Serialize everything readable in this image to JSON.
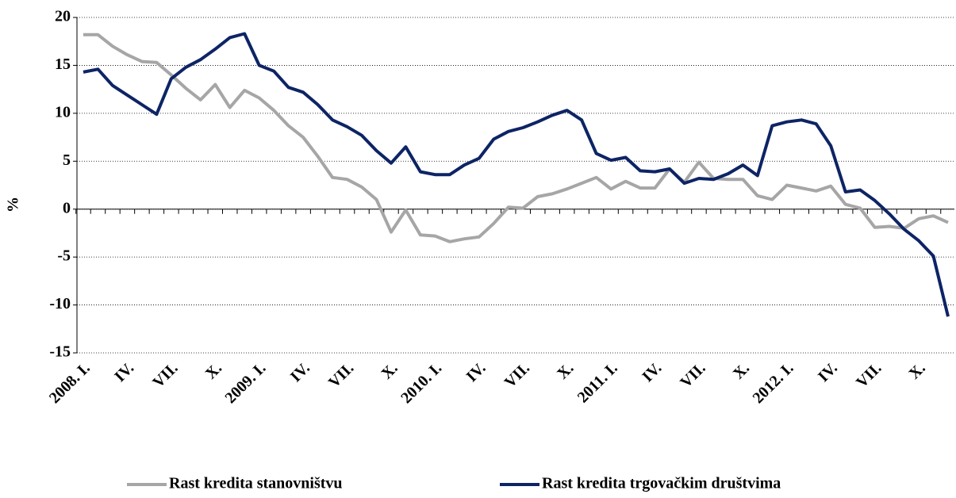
{
  "chart_data": {
    "type": "line",
    "y_label": "%",
    "categories": [
      "2008. I.",
      null,
      null,
      "IV.",
      null,
      null,
      "VII.",
      null,
      null,
      "X.",
      null,
      null,
      "2009. I.",
      null,
      null,
      "IV.",
      null,
      null,
      "VII.",
      null,
      null,
      "X.",
      null,
      null,
      "2010. I.",
      null,
      null,
      "IV.",
      null,
      null,
      "VII.",
      null,
      null,
      "X.",
      null,
      null,
      "2011. I.",
      null,
      null,
      "IV.",
      null,
      null,
      "VII.",
      null,
      null,
      "X.",
      null,
      null,
      "2012. I.",
      null,
      null,
      "IV.",
      null,
      null,
      "VII.",
      null,
      null,
      "X.",
      null,
      null
    ],
    "series": [
      {
        "name": "Rast kredita stanovništvu",
        "color": "#a6a6a6",
        "values": [
          18.2,
          18.2,
          17,
          16.1,
          15.4,
          15.3,
          14,
          12.6,
          11.4,
          13,
          10.6,
          12.4,
          11.6,
          10.3,
          8.7,
          7.5,
          5.5,
          3.3,
          3.1,
          2.3,
          1.0,
          -2.4,
          -0.1,
          -2.7,
          -2.8,
          -3.4,
          -3.1,
          -2.9,
          -1.5,
          0.2,
          0.1,
          1.3,
          1.6,
          2.1,
          2.7,
          3.3,
          2.1,
          2.9,
          2.2,
          2.2,
          4.2,
          2.8,
          4.9,
          3.2,
          3.1,
          3.1,
          1.4,
          1.0,
          2.5,
          2.2,
          1.9,
          2.4,
          0.5,
          0.1,
          -1.9,
          -1.8,
          -2.0,
          -1.0,
          -0.7,
          -1.4
        ]
      },
      {
        "name": "Rast kredita trgovačkim društvima",
        "color": "#0d2465",
        "values": [
          14.3,
          14.6,
          12.9,
          11.9,
          10.9,
          9.9,
          13.6,
          14.8,
          15.6,
          16.7,
          17.9,
          18.3,
          15.0,
          14.4,
          12.7,
          12.2,
          10.9,
          9.3,
          8.6,
          7.7,
          6.1,
          4.8,
          6.5,
          3.9,
          3.6,
          3.6,
          4.6,
          5.3,
          7.3,
          8.1,
          8.5,
          9.1,
          9.8,
          10.3,
          9.3,
          5.8,
          5.1,
          5.4,
          4.0,
          3.9,
          4.2,
          2.7,
          3.2,
          3.1,
          3.7,
          4.6,
          3.5,
          8.7,
          9.1,
          9.3,
          8.9,
          6.6,
          1.8,
          2.0,
          0.9,
          -0.5,
          -2.1,
          -3.3,
          -4.9,
          -11.2
        ]
      }
    ],
    "ylim": [
      -15,
      20
    ],
    "yticks": [
      -15,
      -10,
      -5,
      0,
      5,
      10,
      15,
      20
    ],
    "grid": true,
    "legend": "bottom"
  }
}
